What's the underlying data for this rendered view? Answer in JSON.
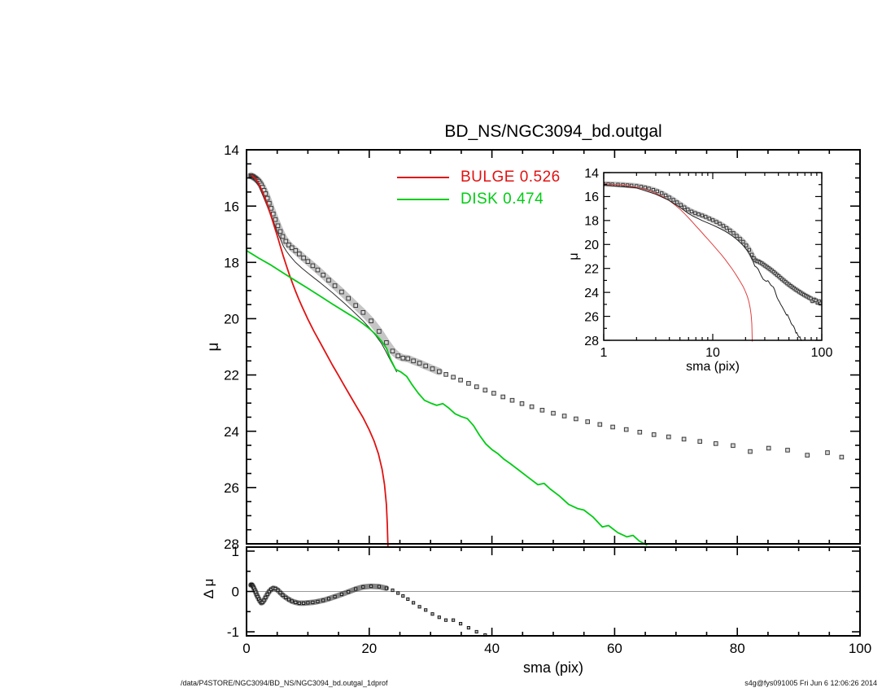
{
  "page": {
    "footer_left": "/data/P4STORE/NGC3094/BD_NS/NGC3094_bd.outgal_1dprof",
    "footer_right": "s4g@fys091005  Fri Jun  6 12:06:26 2014"
  },
  "chart_data": [
    {
      "id": "main",
      "type": "scatter",
      "title": "BD_NS/NGC3094_bd.outgal",
      "xlabel": "sma (pix)",
      "ylabel": "μ",
      "xscale": "linear",
      "xlim": [
        0,
        100
      ],
      "ylim": [
        14,
        28
      ],
      "y_inverted": true,
      "grid": false,
      "xticks": [
        0,
        20,
        40,
        60,
        80,
        100
      ],
      "x_minor_step": 5,
      "yticks": [
        14,
        16,
        18,
        20,
        22,
        24,
        26,
        28
      ],
      "y_minor_step": 0.5,
      "x_tick_labels_shown": false,
      "legend": {
        "position": "upper-center-left",
        "entries": [
          {
            "label": "BULGE  0.526",
            "color": "#e01212"
          },
          {
            "label": "DISK  0.474",
            "color": "#00cc14"
          }
        ]
      },
      "series": [
        {
          "name": "profile",
          "plot": "markers",
          "color": "#3a3a3a",
          "fill": "#d8d8d8",
          "marker": 4.6,
          "halo": true,
          "halo_max_x": 32,
          "halo_color": "rgba(110,110,110,0.40)",
          "x": [
            0.7,
            0.8,
            0.9,
            1.0,
            1.1,
            1.2,
            1.35,
            1.5,
            1.65,
            1.8,
            2.0,
            2.2,
            2.4,
            2.6,
            2.85,
            3.1,
            3.4,
            3.7,
            4.0,
            4.35,
            4.7,
            5.1,
            5.5,
            5.9,
            6.4,
            6.9,
            7.4,
            8.0,
            8.6,
            9.3,
            10.0,
            10.8,
            11.6,
            12.5,
            13.4,
            14.4,
            15.5,
            16.6,
            17.8,
            19.0,
            20.3,
            21.6,
            22.8,
            23.8,
            24.7,
            25.5,
            26.3,
            27.2,
            28.2,
            29.2,
            30.3,
            31.4,
            32.5,
            33.7,
            34.9,
            36.2,
            37.5,
            38.9,
            40.3,
            41.8,
            43.3,
            44.9,
            46.5,
            48.2,
            50.0,
            51.8,
            53.7,
            55.6,
            57.6,
            59.7,
            61.9,
            64.1,
            66.4,
            68.8,
            71.3,
            73.9,
            76.5,
            79.3,
            82.1,
            85.1,
            88.2,
            91.4,
            94.7,
            97.0
          ],
          "y": [
            14.92,
            14.93,
            14.94,
            14.95,
            14.96,
            14.98,
            15.0,
            15.02,
            15.05,
            15.08,
            15.12,
            15.18,
            15.25,
            15.33,
            15.44,
            15.56,
            15.72,
            15.9,
            16.08,
            16.28,
            16.48,
            16.7,
            16.9,
            17.08,
            17.25,
            17.38,
            17.48,
            17.58,
            17.7,
            17.84,
            17.97,
            18.12,
            18.27,
            18.45,
            18.63,
            18.83,
            19.05,
            19.28,
            19.53,
            19.78,
            20.08,
            20.45,
            20.85,
            21.15,
            21.32,
            21.4,
            21.42,
            21.5,
            21.58,
            21.68,
            21.78,
            21.88,
            21.98,
            22.08,
            22.18,
            22.3,
            22.42,
            22.54,
            22.65,
            22.78,
            22.9,
            23.02,
            23.13,
            23.25,
            23.36,
            23.46,
            23.56,
            23.66,
            23.76,
            23.85,
            23.94,
            24.03,
            24.12,
            24.2,
            24.28,
            24.36,
            24.44,
            24.51,
            24.72,
            24.6,
            24.67,
            24.85,
            24.76,
            24.92
          ]
        },
        {
          "name": "model_total",
          "plot": "line",
          "color": "#2e2e2e",
          "width": 1,
          "x": [
            0.8,
            2,
            3,
            4,
            5,
            6,
            6.5,
            7,
            7.5,
            8,
            9,
            10,
            11,
            12,
            13,
            14,
            15,
            16,
            17,
            18,
            19,
            20,
            21,
            22,
            22.8,
            23.5,
            24.5
          ],
          "y": [
            14.95,
            15.28,
            15.8,
            16.33,
            16.9,
            17.42,
            17.6,
            17.75,
            17.88,
            18.0,
            18.2,
            18.38,
            18.55,
            18.72,
            18.9,
            19.08,
            19.27,
            19.46,
            19.66,
            19.87,
            20.08,
            20.32,
            20.58,
            20.88,
            21.2,
            21.5,
            21.9
          ]
        },
        {
          "name": "bulge",
          "plot": "line",
          "color": "#e01212",
          "width": 1.8,
          "x": [
            0.8,
            1.5,
            2,
            2.5,
            3,
            3.5,
            4,
            4.5,
            5,
            5.5,
            6,
            6.5,
            7,
            7.5,
            8,
            8.5,
            9,
            10,
            11,
            12,
            13,
            14,
            15,
            16,
            17,
            18,
            19,
            20,
            20.8,
            21.5,
            22.1,
            22.5,
            22.8,
            22.95,
            23.05
          ],
          "y": [
            14.9,
            15.03,
            15.22,
            15.45,
            15.72,
            16.02,
            16.35,
            16.7,
            17.05,
            17.42,
            17.78,
            18.12,
            18.45,
            18.75,
            19.03,
            19.3,
            19.55,
            20.02,
            20.45,
            20.85,
            21.25,
            21.65,
            22.02,
            22.4,
            22.78,
            23.15,
            23.52,
            23.95,
            24.35,
            24.8,
            25.35,
            25.9,
            26.6,
            27.3,
            28.1
          ]
        },
        {
          "name": "disk",
          "plot": "line",
          "color": "#00cc14",
          "width": 1.8,
          "x": [
            0,
            2,
            4,
            6,
            8,
            10,
            12,
            14,
            16,
            18,
            19,
            20,
            21,
            22,
            22.8,
            23.5,
            24.3,
            25.2,
            26.1,
            27,
            28,
            29,
            30,
            31,
            32,
            33,
            34,
            35,
            36,
            37,
            38,
            39,
            40,
            41,
            42,
            43,
            44.5,
            46,
            47.5,
            48.5,
            49.5,
            51,
            52.5,
            54,
            55,
            56.5,
            58,
            59,
            60.5,
            62,
            63,
            64,
            65.3
          ],
          "y": [
            17.58,
            17.85,
            18.1,
            18.38,
            18.65,
            18.92,
            19.2,
            19.48,
            19.75,
            20.02,
            20.18,
            20.35,
            20.55,
            20.8,
            21.05,
            21.45,
            21.8,
            21.9,
            22.05,
            22.35,
            22.65,
            22.9,
            23.0,
            23.08,
            23.02,
            23.18,
            23.38,
            23.48,
            23.55,
            23.8,
            24.15,
            24.45,
            24.65,
            24.8,
            25.0,
            25.15,
            25.4,
            25.65,
            25.9,
            25.85,
            26.05,
            26.3,
            26.6,
            26.75,
            26.8,
            27.05,
            27.4,
            27.35,
            27.6,
            27.75,
            27.7,
            27.9,
            28.05
          ]
        }
      ]
    },
    {
      "id": "inset",
      "type": "scatter",
      "xlabel": "sma (pix)",
      "ylabel": "μ",
      "xscale": "log",
      "xlim": [
        1,
        100
      ],
      "ylim": [
        14,
        28
      ],
      "y_inverted": true,
      "grid": false,
      "xticks": [
        1,
        10,
        100
      ],
      "yticks": [
        14,
        16,
        18,
        20,
        22,
        24,
        26,
        28
      ],
      "y_minor_step": 1,
      "x_tick_labels_shown": true,
      "series": [
        {
          "name": "profile",
          "plot": "markers",
          "ref": "main.profile",
          "color": "#3a3a3a",
          "fill": "#d8d8d8",
          "marker": 3.4,
          "halo": true,
          "halo_color": "rgba(110,110,110,0.40)"
        },
        {
          "name": "disk",
          "plot": "line",
          "ref": "main.disk",
          "color": "#33cc44",
          "width": 1
        },
        {
          "name": "bulge",
          "plot": "line",
          "ref": "main.bulge",
          "color": "#e04040",
          "width": 1
        },
        {
          "name": "model_total",
          "plot": "line",
          "color": "#1f1f1f",
          "width": 1,
          "x": [
            0.8,
            2,
            3,
            4,
            5,
            6,
            6.5,
            7,
            7.5,
            8,
            9,
            10,
            11,
            12,
            13,
            14,
            15,
            16,
            17,
            18,
            19,
            20,
            21,
            22,
            22.8,
            23.5,
            24.3,
            25.2,
            26.1,
            27,
            28,
            29,
            30,
            31,
            32,
            33,
            34,
            35,
            36,
            37,
            38,
            39,
            40,
            41,
            42,
            43,
            44.5,
            46,
            47.5,
            48.5,
            49.5,
            51,
            52.5,
            54,
            55,
            56.5,
            58,
            59,
            60.5,
            62,
            63,
            64,
            65.3
          ],
          "y": [
            14.95,
            15.28,
            15.8,
            16.33,
            16.9,
            17.42,
            17.6,
            17.75,
            17.88,
            18.0,
            18.2,
            18.38,
            18.55,
            18.72,
            18.9,
            19.08,
            19.27,
            19.46,
            19.66,
            19.87,
            20.08,
            20.32,
            20.58,
            20.88,
            21.2,
            21.45,
            21.8,
            21.9,
            22.05,
            22.35,
            22.65,
            22.9,
            23.0,
            23.08,
            23.02,
            23.18,
            23.38,
            23.48,
            23.55,
            23.8,
            24.15,
            24.45,
            24.65,
            24.8,
            25.0,
            25.15,
            25.4,
            25.65,
            25.9,
            25.85,
            26.05,
            26.3,
            26.6,
            26.75,
            26.8,
            27.05,
            27.4,
            27.35,
            27.6,
            27.75,
            27.7,
            27.9,
            28.05
          ]
        }
      ]
    },
    {
      "id": "residual",
      "type": "scatter",
      "xlabel": "sma (pix)",
      "ylabel": "Δ μ",
      "xscale": "linear",
      "xlim": [
        0,
        100
      ],
      "ylim": [
        1.1,
        -1.1
      ],
      "grid": false,
      "zero_line": true,
      "zero_line_color": "#9a9a9a",
      "xticks": [
        0,
        20,
        40,
        60,
        80,
        100
      ],
      "x_minor_step": 5,
      "yticks": [
        1,
        0,
        -1
      ],
      "y_minor_step": 0.5,
      "x_tick_labels_shown": true,
      "series": [
        {
          "name": "residual",
          "plot": "markers",
          "color": "#1c1c1c",
          "fill": "#b4b4b4",
          "marker": 3.2,
          "halo": true,
          "halo_max_x": 23.5,
          "halo_color": "rgba(35,35,35,0.55)",
          "x": [
            0.7,
            0.8,
            0.9,
            1.0,
            1.1,
            1.2,
            1.35,
            1.5,
            1.65,
            1.8,
            2.0,
            2.2,
            2.4,
            2.6,
            2.85,
            3.1,
            3.4,
            3.7,
            4.0,
            4.35,
            4.7,
            5.1,
            5.5,
            5.9,
            6.4,
            6.9,
            7.4,
            8.0,
            8.6,
            9.3,
            10.0,
            10.8,
            11.6,
            12.5,
            13.4,
            14.4,
            15.5,
            16.6,
            17.8,
            19.0,
            20.3,
            21.6,
            22.8,
            23.8,
            24.7,
            25.5,
            26.3,
            27.2,
            28.2,
            29.2,
            30.3,
            31.4,
            32.5,
            33.7,
            34.9,
            36.2,
            37.5,
            38.9
          ],
          "y": [
            0.16,
            0.17,
            0.16,
            0.14,
            0.11,
            0.08,
            0.03,
            -0.02,
            -0.08,
            -0.13,
            -0.19,
            -0.24,
            -0.28,
            -0.27,
            -0.22,
            -0.15,
            -0.07,
            0.0,
            0.05,
            0.08,
            0.07,
            0.03,
            -0.03,
            -0.09,
            -0.15,
            -0.2,
            -0.24,
            -0.27,
            -0.29,
            -0.29,
            -0.28,
            -0.27,
            -0.25,
            -0.22,
            -0.18,
            -0.13,
            -0.07,
            -0.01,
            0.06,
            0.11,
            0.13,
            0.12,
            0.08,
            0.03,
            -0.04,
            -0.11,
            -0.19,
            -0.28,
            -0.38,
            -0.46,
            -0.56,
            -0.64,
            -0.71,
            -0.71,
            -0.8,
            -0.9,
            -1.0,
            -1.08
          ]
        }
      ]
    }
  ]
}
